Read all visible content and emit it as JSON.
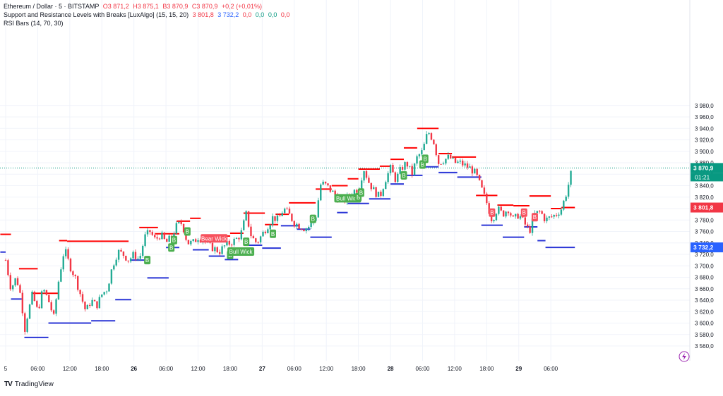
{
  "legend": {
    "symbol": "Ethereum / Dollar · 5 · BITSTAMP",
    "open": "O3 871,2",
    "high": "H3 875,1",
    "low": "B3 870,9",
    "close": "C3 870,9",
    "change": "+0,2 (+0,01%)",
    "indicator": "Support and Resistance Levels with Breaks [LuxAlgo] (15, 15, 20)",
    "ind_v1": "3 801,8",
    "ind_v2": "3 732,2",
    "ind_v3": "0,0",
    "ind_v4": "0,0",
    "ind_v5": "0,0",
    "ind_v6": "0,0",
    "rsi": "RSI Bars (14, 70, 30)"
  },
  "brand": {
    "name": "TradingView"
  },
  "colors": {
    "up": "#22ab94",
    "down": "#f23645",
    "resistance": "#ff0000",
    "support": "#2a35d6",
    "last": "#089981",
    "resline": "#f23645",
    "supline": "#2962ff"
  },
  "chart_data": {
    "type": "candlestick",
    "title": "Ethereum / Dollar · 5 · BITSTAMP",
    "ylim": [
      3550,
      3990
    ],
    "yticks": [
      3560,
      3580,
      3600,
      3620,
      3640,
      3660,
      3680,
      3700,
      3720,
      3740,
      3760,
      3780,
      3800,
      3820,
      3840,
      3860,
      3880,
      3900,
      3920,
      3940,
      3960,
      3980
    ],
    "ytick_labels": [
      "3 560,0",
      "3 580,0",
      "3 600,0",
      "3 620,0",
      "3 640,0",
      "3 660,0",
      "3 680,0",
      "3 700,0",
      "3 720,0",
      "3 740,0",
      "3 760,0",
      "3 780,0",
      "3 800,0",
      "3 820,0",
      "3 840,0",
      "3 860,0",
      "3 880,0",
      "3 900,0",
      "3 920,0",
      "3 940,0",
      "3 960,0",
      "3 980,0"
    ],
    "x_range_hours": [
      -1,
      69.5
    ],
    "xticks": [
      {
        "t": 0,
        "label": "5"
      },
      {
        "t": 6,
        "label": "06:00"
      },
      {
        "t": 12,
        "label": "12:00"
      },
      {
        "t": 18,
        "label": "18:00"
      },
      {
        "t": 24,
        "label": "26",
        "bold": true
      },
      {
        "t": 30,
        "label": "06:00"
      },
      {
        "t": 36,
        "label": "12:00"
      },
      {
        "t": 42,
        "label": "18:00"
      },
      {
        "t": 48,
        "label": "27",
        "bold": true
      },
      {
        "t": 54,
        "label": "06:00"
      },
      {
        "t": 60,
        "label": "12:00"
      },
      {
        "t": 66,
        "label": "18:00"
      },
      {
        "t": 72,
        "label": "28",
        "bold": true
      },
      {
        "t": 78,
        "label": "06:00"
      },
      {
        "t": 84,
        "label": "12:00"
      },
      {
        "t": 90,
        "label": "18:00"
      },
      {
        "t": 96,
        "label": "29",
        "bold": true
      },
      {
        "t": 102,
        "label": "06:00"
      }
    ],
    "x_scale_note": "hours since start of day 25",
    "price_path": [
      [
        0,
        3710
      ],
      [
        1,
        3660
      ],
      [
        2,
        3680
      ],
      [
        3,
        3640
      ],
      [
        3.5,
        3585
      ],
      [
        4,
        3610
      ],
      [
        5,
        3650
      ],
      [
        6,
        3620
      ],
      [
        7,
        3660
      ],
      [
        8,
        3640
      ],
      [
        9,
        3610
      ],
      [
        10,
        3680
      ],
      [
        11,
        3730
      ],
      [
        12,
        3700
      ],
      [
        13,
        3680
      ],
      [
        14,
        3650
      ],
      [
        15,
        3620
      ],
      [
        16,
        3640
      ],
      [
        17,
        3630
      ],
      [
        18,
        3650
      ],
      [
        19,
        3660
      ],
      [
        20,
        3700
      ],
      [
        21,
        3725
      ],
      [
        22,
        3720
      ],
      [
        23,
        3710
      ],
      [
        24,
        3720
      ],
      [
        25,
        3710
      ],
      [
        26,
        3750
      ],
      [
        27,
        3760
      ],
      [
        28,
        3745
      ],
      [
        29,
        3755
      ],
      [
        30,
        3740
      ],
      [
        31,
        3750
      ],
      [
        32,
        3770
      ],
      [
        33,
        3775
      ],
      [
        34,
        3740
      ],
      [
        35,
        3740
      ],
      [
        36,
        3750
      ],
      [
        37,
        3745
      ],
      [
        38,
        3735
      ],
      [
        39,
        3730
      ],
      [
        40,
        3725
      ],
      [
        41,
        3735
      ],
      [
        42,
        3740
      ],
      [
        43,
        3745
      ],
      [
        44,
        3755
      ],
      [
        45,
        3790
      ],
      [
        46,
        3750
      ],
      [
        47,
        3740
      ],
      [
        48,
        3755
      ],
      [
        49,
        3770
      ],
      [
        50,
        3785
      ],
      [
        51,
        3780
      ],
      [
        52,
        3800
      ],
      [
        53,
        3790
      ],
      [
        54,
        3775
      ],
      [
        55,
        3770
      ],
      [
        56,
        3765
      ],
      [
        57,
        3770
      ],
      [
        58,
        3785
      ],
      [
        59,
        3845
      ],
      [
        60,
        3840
      ],
      [
        61,
        3830
      ],
      [
        62,
        3820
      ],
      [
        63,
        3810
      ],
      [
        64,
        3820
      ],
      [
        65,
        3830
      ],
      [
        66,
        3835
      ],
      [
        67,
        3870
      ],
      [
        68,
        3845
      ],
      [
        69,
        3830
      ],
      [
        70,
        3820
      ],
      [
        71,
        3850
      ],
      [
        72,
        3870
      ],
      [
        73,
        3850
      ],
      [
        74,
        3870
      ],
      [
        75,
        3880
      ],
      [
        76,
        3860
      ],
      [
        77,
        3890
      ],
      [
        78,
        3900
      ],
      [
        79,
        3935
      ],
      [
        80,
        3920
      ],
      [
        81,
        3880
      ],
      [
        82,
        3885
      ],
      [
        83,
        3890
      ],
      [
        84,
        3880
      ],
      [
        85,
        3880
      ],
      [
        86,
        3875
      ],
      [
        87,
        3870
      ],
      [
        88,
        3860
      ],
      [
        89,
        3835
      ],
      [
        90,
        3810
      ],
      [
        91,
        3780
      ],
      [
        92,
        3800
      ],
      [
        93,
        3790
      ],
      [
        94,
        3800
      ],
      [
        95,
        3780
      ],
      [
        96,
        3790
      ],
      [
        97,
        3775
      ],
      [
        98,
        3760
      ],
      [
        99,
        3790
      ],
      [
        100,
        3795
      ],
      [
        101,
        3780
      ],
      [
        102,
        3785
      ],
      [
        103,
        3790
      ],
      [
        104,
        3800
      ],
      [
        105,
        3830
      ],
      [
        106,
        3870
      ]
    ],
    "resistance_levels": [
      {
        "t0": -1,
        "t1": 1,
        "y": 3755
      },
      {
        "t0": 2.5,
        "t1": 6,
        "y": 3695
      },
      {
        "t0": 5,
        "t1": 10,
        "y": 3652
      },
      {
        "t0": 10,
        "t1": 11.5,
        "y": 3744
      },
      {
        "t0": 11.5,
        "t1": 23,
        "y": 3743
      },
      {
        "t0": 25,
        "t1": 28.5,
        "y": 3767
      },
      {
        "t0": 28,
        "t1": 32.5,
        "y": 3756
      },
      {
        "t0": 32,
        "t1": 34.5,
        "y": 3778
      },
      {
        "t0": 34.5,
        "t1": 36.5,
        "y": 3783
      },
      {
        "t0": 37,
        "t1": 42,
        "y": 3752
      },
      {
        "t0": 42,
        "t1": 44.5,
        "y": 3757
      },
      {
        "t0": 44.5,
        "t1": 48.5,
        "y": 3792
      },
      {
        "t0": 48.5,
        "t1": 51,
        "y": 3772
      },
      {
        "t0": 50.5,
        "t1": 53,
        "y": 3790
      },
      {
        "t0": 53,
        "t1": 58,
        "y": 3810
      },
      {
        "t0": 58,
        "t1": 61,
        "y": 3834
      },
      {
        "t0": 61,
        "t1": 64,
        "y": 3840
      },
      {
        "t0": 64,
        "t1": 66,
        "y": 3852
      },
      {
        "t0": 66,
        "t1": 70,
        "y": 3869
      },
      {
        "t0": 70,
        "t1": 72,
        "y": 3874
      },
      {
        "t0": 72,
        "t1": 74.5,
        "y": 3886
      },
      {
        "t0": 74.5,
        "t1": 77,
        "y": 3906
      },
      {
        "t0": 77,
        "t1": 81,
        "y": 3940
      },
      {
        "t0": 81,
        "t1": 83.5,
        "y": 3896
      },
      {
        "t0": 83.5,
        "t1": 88,
        "y": 3890
      },
      {
        "t0": 88,
        "t1": 92,
        "y": 3823
      },
      {
        "t0": 92,
        "t1": 95,
        "y": 3806
      },
      {
        "t0": 95,
        "t1": 98,
        "y": 3805
      },
      {
        "t0": 98,
        "t1": 102,
        "y": 3822
      },
      {
        "t0": 102,
        "t1": 104,
        "y": 3800
      },
      {
        "t0": 104,
        "t1": 106.5,
        "y": 3801.8
      }
    ],
    "support_levels": [
      {
        "t0": -1,
        "t1": 0,
        "y": 3724
      },
      {
        "t0": 1,
        "t1": 3,
        "y": 3642
      },
      {
        "t0": 3.5,
        "t1": 8,
        "y": 3575
      },
      {
        "t0": 8,
        "t1": 16,
        "y": 3600
      },
      {
        "t0": 16,
        "t1": 20.5,
        "y": 3604
      },
      {
        "t0": 20.5,
        "t1": 23.5,
        "y": 3641
      },
      {
        "t0": 23.5,
        "t1": 26.5,
        "y": 3710
      },
      {
        "t0": 26.5,
        "t1": 30.5,
        "y": 3679
      },
      {
        "t0": 30,
        "t1": 32.5,
        "y": 3732
      },
      {
        "t0": 35,
        "t1": 38,
        "y": 3728
      },
      {
        "t0": 38,
        "t1": 41,
        "y": 3717
      },
      {
        "t0": 41,
        "t1": 43.5,
        "y": 3711
      },
      {
        "t0": 45,
        "t1": 48,
        "y": 3736
      },
      {
        "t0": 48,
        "t1": 51.5,
        "y": 3731
      },
      {
        "t0": 51.5,
        "t1": 55,
        "y": 3770
      },
      {
        "t0": 54.5,
        "t1": 57,
        "y": 3764
      },
      {
        "t0": 57,
        "t1": 61,
        "y": 3750
      },
      {
        "t0": 62,
        "t1": 64,
        "y": 3793
      },
      {
        "t0": 64,
        "t1": 68,
        "y": 3809
      },
      {
        "t0": 68,
        "t1": 72,
        "y": 3817
      },
      {
        "t0": 72,
        "t1": 74.5,
        "y": 3843
      },
      {
        "t0": 74.5,
        "t1": 78,
        "y": 3858
      },
      {
        "t0": 78,
        "t1": 81,
        "y": 3873
      },
      {
        "t0": 81,
        "t1": 84.5,
        "y": 3863
      },
      {
        "t0": 84.5,
        "t1": 89,
        "y": 3855
      },
      {
        "t0": 89,
        "t1": 93,
        "y": 3771
      },
      {
        "t0": 93,
        "t1": 97,
        "y": 3750
      },
      {
        "t0": 97,
        "t1": 99.5,
        "y": 3768
      },
      {
        "t0": 99.5,
        "t1": 101,
        "y": 3744
      },
      {
        "t0": 101,
        "t1": 106.5,
        "y": 3732.2
      }
    ],
    "signals": [
      {
        "t": 26.5,
        "y": 3710,
        "text": "B",
        "kind": "up"
      },
      {
        "t": 31,
        "y": 3732,
        "text": "B",
        "kind": "up"
      },
      {
        "t": 31.5,
        "y": 3745,
        "text": "B",
        "kind": "up"
      },
      {
        "t": 34,
        "y": 3760,
        "text": "B",
        "kind": "up"
      },
      {
        "t": 39,
        "y": 3748,
        "text": "Bear Wick",
        "kind": "down"
      },
      {
        "t": 42,
        "y": 3719,
        "text": "B",
        "kind": "up"
      },
      {
        "t": 44,
        "y": 3725,
        "text": "Bull Wick",
        "kind": "up"
      },
      {
        "t": 45,
        "y": 3742,
        "text": "B",
        "kind": "up"
      },
      {
        "t": 50,
        "y": 3756,
        "text": "B",
        "kind": "up"
      },
      {
        "t": 57.5,
        "y": 3782,
        "text": "B",
        "kind": "up"
      },
      {
        "t": 64,
        "y": 3818,
        "text": "Bull Wick",
        "kind": "up"
      },
      {
        "t": 66,
        "y": 3820,
        "text": "B",
        "kind": "up"
      },
      {
        "t": 66.5,
        "y": 3828,
        "text": "B",
        "kind": "up"
      },
      {
        "t": 74.5,
        "y": 3858,
        "text": "B",
        "kind": "up"
      },
      {
        "t": 78,
        "y": 3877,
        "text": "B",
        "kind": "up"
      },
      {
        "t": 78.5,
        "y": 3887,
        "text": "B",
        "kind": "up"
      },
      {
        "t": 91,
        "y": 3793,
        "text": "B",
        "kind": "down"
      },
      {
        "t": 97,
        "y": 3793,
        "text": "B",
        "kind": "down"
      },
      {
        "t": 99,
        "y": 3785,
        "text": "B",
        "kind": "down"
      }
    ],
    "last_price": {
      "value": 3870.9,
      "label": "3 870,9",
      "timer": "01:21"
    },
    "resistance_label": "3 801,8",
    "support_label": "3 732,2"
  }
}
